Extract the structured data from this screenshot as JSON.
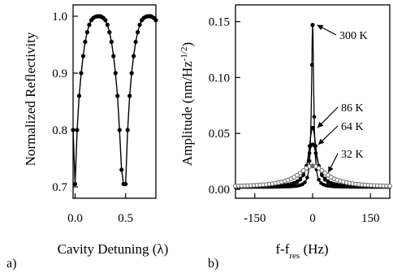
{
  "chart_data": [
    {
      "panel_label": "a)",
      "type": "line",
      "xlabel": "Cavity Detuning (λ)",
      "ylabel": "Normalized Reflectivity",
      "xlim": [
        -0.02,
        0.8
      ],
      "ylim": [
        0.68,
        1.02
      ],
      "xticks": [
        0.0,
        0.5
      ],
      "xtick_labels": [
        "0.0",
        "0.5"
      ],
      "yticks": [
        0.7,
        0.8,
        0.9,
        1.0
      ],
      "ytick_labels": [
        "0.7",
        "0.8",
        "0.9",
        "1.0"
      ],
      "series": [
        {
          "marker": "filled-circle",
          "x": [
            -0.02,
            0.0,
            0.02,
            0.04,
            0.06,
            0.08,
            0.1,
            0.12,
            0.14,
            0.16,
            0.18,
            0.2,
            0.22,
            0.24,
            0.25,
            0.26,
            0.28,
            0.3,
            0.32,
            0.34,
            0.36,
            0.38,
            0.4,
            0.42,
            0.44,
            0.46,
            0.48,
            0.5,
            0.52,
            0.54,
            0.56,
            0.58,
            0.6,
            0.62,
            0.64,
            0.66,
            0.68,
            0.7,
            0.72,
            0.74,
            0.75,
            0.76,
            0.78,
            0.8
          ],
          "y": [
            0.8,
            0.705,
            0.8,
            0.86,
            0.9,
            0.93,
            0.955,
            0.972,
            0.985,
            0.993,
            0.997,
            0.999,
            1.0,
            1.0,
            1.0,
            0.999,
            0.997,
            0.993,
            0.985,
            0.972,
            0.955,
            0.93,
            0.9,
            0.86,
            0.8,
            0.73,
            0.705,
            0.705,
            0.8,
            0.86,
            0.9,
            0.93,
            0.955,
            0.972,
            0.985,
            0.993,
            0.997,
            0.999,
            1.0,
            1.0,
            1.0,
            0.999,
            0.997,
            0.993
          ]
        }
      ]
    },
    {
      "panel_label": "b)",
      "type": "line",
      "xlabel": "f-f_res (Hz)",
      "ylabel": "Amplitude (nm/Hz^-1/2)",
      "xlim": [
        -200,
        200
      ],
      "ylim": [
        -0.008,
        0.165
      ],
      "xticks": [
        -150,
        0,
        150
      ],
      "xtick_labels": [
        "-150",
        "0",
        "150"
      ],
      "yticks": [
        0.0,
        0.05,
        0.1,
        0.15
      ],
      "ytick_labels": [
        "0.00",
        "0.05",
        "0.10",
        "0.15"
      ],
      "series": [
        {
          "name": "300 K",
          "peak": 0.147,
          "halfwidth_hz": 3.5,
          "baseline": 0.002
        },
        {
          "name": "86 K",
          "peak": 0.055,
          "halfwidth_hz": 12,
          "baseline": 0.002
        },
        {
          "name": "64 K",
          "peak": 0.04,
          "halfwidth_hz": 16,
          "baseline": 0.002
        },
        {
          "name": "32 K",
          "peak": 0.021,
          "halfwidth_hz": 45,
          "baseline": 0.002
        }
      ],
      "annotations": [
        "300 K",
        "86 K",
        "64 K",
        "32 K"
      ]
    }
  ],
  "colors": {
    "ink": "#000000",
    "secondary": "#666666",
    "background": "#ffffff"
  }
}
